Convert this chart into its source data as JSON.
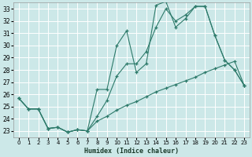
{
  "xlabel": "Humidex (Indice chaleur)",
  "bg_color": "#cce8e8",
  "grid_color": "#ffffff",
  "line_color": "#2d7a6a",
  "xlim": [
    -0.5,
    23.5
  ],
  "ylim": [
    22.5,
    33.5
  ],
  "xticks": [
    0,
    1,
    2,
    3,
    4,
    5,
    6,
    7,
    8,
    9,
    10,
    11,
    12,
    13,
    14,
    15,
    16,
    17,
    18,
    19,
    20,
    21,
    22,
    23
  ],
  "yticks": [
    23,
    24,
    25,
    26,
    27,
    28,
    29,
    30,
    31,
    32,
    33
  ],
  "line1_x": [
    0,
    1,
    2,
    3,
    4,
    5,
    6,
    7,
    8,
    9,
    10,
    11,
    12,
    13,
    14,
    15,
    16,
    17,
    18,
    19,
    20,
    21,
    22,
    23
  ],
  "line1_y": [
    25.7,
    24.8,
    24.8,
    23.2,
    23.3,
    22.9,
    23.1,
    23.0,
    26.4,
    26.4,
    30.0,
    31.2,
    27.8,
    28.5,
    33.3,
    33.6,
    31.5,
    32.2,
    33.2,
    33.2,
    30.8,
    28.8,
    28.0,
    26.7
  ],
  "line2_x": [
    0,
    1,
    2,
    3,
    4,
    5,
    6,
    7,
    8,
    9,
    10,
    11,
    12,
    13,
    14,
    15,
    16,
    17,
    18,
    19,
    20,
    21,
    22,
    23
  ],
  "line2_y": [
    25.7,
    24.8,
    24.8,
    23.2,
    23.3,
    22.9,
    23.1,
    23.0,
    24.2,
    25.5,
    27.5,
    28.5,
    28.5,
    29.5,
    31.5,
    33.0,
    32.0,
    32.5,
    33.2,
    33.2,
    30.8,
    28.8,
    28.0,
    26.7
  ],
  "line3_x": [
    0,
    1,
    2,
    3,
    4,
    5,
    6,
    7,
    8,
    9,
    10,
    11,
    12,
    13,
    14,
    15,
    16,
    17,
    18,
    19,
    20,
    21,
    22,
    23
  ],
  "line3_y": [
    25.7,
    24.8,
    24.8,
    23.2,
    23.3,
    22.9,
    23.1,
    23.0,
    23.8,
    24.2,
    24.7,
    25.1,
    25.4,
    25.8,
    26.2,
    26.5,
    26.8,
    27.1,
    27.4,
    27.8,
    28.1,
    28.4,
    28.7,
    26.7
  ]
}
